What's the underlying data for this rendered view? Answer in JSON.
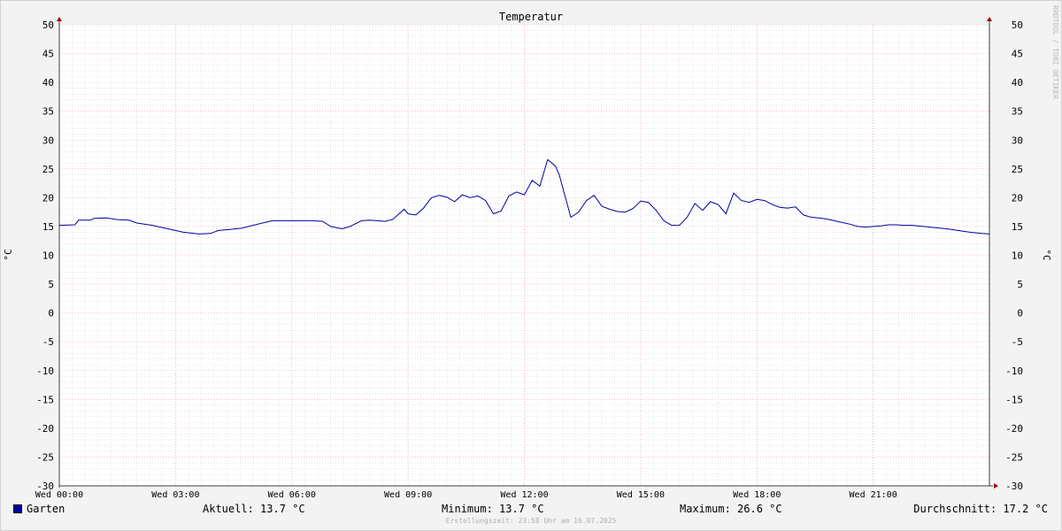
{
  "chart_data": {
    "type": "line",
    "title": "Temperatur",
    "ylabel": "°C",
    "ylim": [
      -30,
      50
    ],
    "y_major_step": 5,
    "y_ticks": [
      "50",
      "45",
      "40",
      "35",
      "30",
      "25",
      "20",
      "15",
      "10",
      "5",
      "0",
      "-5",
      "-10",
      "-15",
      "-20",
      "-25",
      "-30"
    ],
    "x_ticks": [
      "Wed 00:00",
      "Wed 03:00",
      "Wed 06:00",
      "Wed 09:00",
      "Wed 12:00",
      "Wed 15:00",
      "Wed 18:00",
      "Wed 21:00"
    ],
    "x_tick_hours": [
      0,
      3,
      6,
      9,
      12,
      15,
      18,
      21
    ],
    "xlim_hours": [
      0,
      24
    ],
    "grid": true,
    "watermark": "RRDTOOL / TOBI OETIKER",
    "series": [
      {
        "name": "Garten",
        "color": "#0000a0",
        "x_hours": [
          0,
          0.4,
          0.5,
          0.8,
          0.9,
          1.2,
          1.5,
          1.8,
          2.0,
          2.4,
          2.8,
          3.2,
          3.6,
          3.9,
          4.1,
          4.4,
          4.7,
          5.0,
          5.3,
          5.5,
          6.0,
          6.5,
          6.8,
          7.0,
          7.3,
          7.5,
          7.8,
          8.0,
          8.2,
          8.4,
          8.6,
          8.9,
          9.0,
          9.2,
          9.4,
          9.6,
          9.8,
          10.0,
          10.2,
          10.4,
          10.6,
          10.8,
          11.0,
          11.2,
          11.4,
          11.6,
          11.8,
          12.0,
          12.2,
          12.4,
          12.6,
          12.8,
          12.9,
          13.0,
          13.2,
          13.4,
          13.6,
          13.8,
          14.0,
          14.2,
          14.4,
          14.6,
          14.8,
          15.0,
          15.2,
          15.4,
          15.6,
          15.8,
          16.0,
          16.2,
          16.4,
          16.6,
          16.8,
          17.0,
          17.2,
          17.4,
          17.6,
          17.8,
          18.0,
          18.2,
          18.4,
          18.6,
          18.8,
          19.0,
          19.2,
          19.4,
          19.6,
          19.8,
          20.0,
          20.2,
          20.4,
          20.6,
          20.8,
          21.0,
          21.2,
          21.4,
          21.6,
          21.8,
          22.0,
          22.3,
          22.6,
          22.9,
          23.2,
          23.5,
          23.8,
          24.0
        ],
        "values": [
          15.2,
          15.3,
          16.1,
          16.1,
          16.4,
          16.5,
          16.2,
          16.1,
          15.6,
          15.2,
          14.6,
          14.0,
          13.7,
          13.8,
          14.3,
          14.5,
          14.7,
          15.2,
          15.7,
          16.0,
          16.0,
          16.0,
          15.9,
          15.0,
          14.6,
          15.0,
          16.0,
          16.1,
          16.0,
          15.9,
          16.2,
          18.0,
          17.2,
          17.0,
          18.2,
          20.0,
          20.4,
          20.1,
          19.3,
          20.5,
          20.0,
          20.3,
          19.5,
          17.2,
          17.7,
          20.3,
          21.0,
          20.5,
          23.0,
          22.0,
          26.6,
          25.5,
          24.0,
          21.5,
          16.6,
          17.5,
          19.5,
          20.4,
          18.5,
          18.0,
          17.6,
          17.5,
          18.1,
          19.4,
          19.2,
          17.8,
          16.0,
          15.2,
          15.2,
          16.6,
          19.0,
          17.8,
          19.3,
          18.8,
          17.2,
          20.8,
          19.5,
          19.2,
          19.7,
          19.5,
          18.8,
          18.3,
          18.2,
          18.4,
          17.0,
          16.6,
          16.5,
          16.3,
          16.0,
          15.7,
          15.4,
          15.0,
          14.9,
          15.0,
          15.1,
          15.3,
          15.3,
          15.2,
          15.2,
          15.0,
          14.8,
          14.6,
          14.3,
          14.0,
          13.8,
          13.7
        ]
      }
    ]
  },
  "legend": {
    "series_name": "Garten",
    "current": "Aktuell: 13.7 °C",
    "minimum": "Minimum: 13.7 °C",
    "maximum": "Maximum: 26.6 °C",
    "average": "Durchschnitt: 17.2 °C"
  },
  "footer": "Erstellungszeit: 23:58 Uhr am 16.07.2025"
}
